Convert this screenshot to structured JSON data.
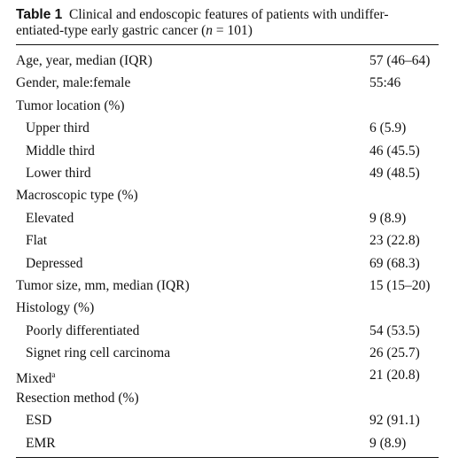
{
  "caption": {
    "label": "Table 1",
    "line1": "Clinical and endoscopic features of patients with undiffer-",
    "line2_before": "entiated-type early gastric cancer (",
    "italic": "n",
    "line2_after": " = 101)"
  },
  "table": {
    "rows": [
      [
        "Age, year, median (IQR)",
        "57 (46–64)"
      ],
      [
        "Gender, male:female",
        "55:46"
      ],
      [
        "Tumor location (%)"
      ],
      [
        "Upper third",
        "6 (5.9)"
      ],
      [
        "Middle third",
        "46 (45.5)"
      ],
      [
        "Lower third",
        "49 (48.5)"
      ],
      [
        "Macroscopic type (%)"
      ],
      [
        "Elevated",
        "9 (8.9)"
      ],
      [
        "Flat",
        "23 (22.8)"
      ],
      [
        "Depressed",
        "69 (68.3)"
      ],
      [
        "Tumor size, mm, median (IQR)",
        "15 (15–20)"
      ],
      [
        "Histology (%)"
      ],
      [
        "Poorly differentiated",
        "54 (53.5)"
      ],
      [
        "Signet ring cell carcinoma",
        "26 (25.7)"
      ],
      [
        "Mixed",
        "21 (20.8)",
        "a"
      ],
      [
        "Resection method (%)"
      ],
      [
        "ESD",
        "92 (91.1)"
      ],
      [
        "EMR",
        "9 (8.9)"
      ]
    ]
  }
}
